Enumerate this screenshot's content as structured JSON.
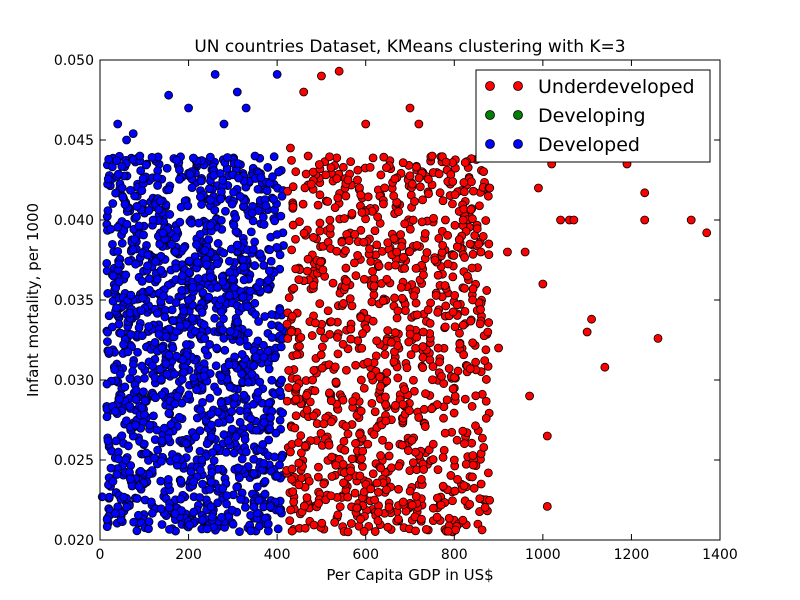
{
  "chart_data": {
    "type": "scatter",
    "title": "UN countries Dataset, KMeans clustering with K=3",
    "xlabel": "Per Capita GDP in US$",
    "ylabel": "Infant mortality, per 1000",
    "xlim": [
      0,
      1400
    ],
    "ylim": [
      0.02,
      0.05
    ],
    "x_ticks": [
      "0",
      "200",
      "400",
      "600",
      "800",
      "1000",
      "1200",
      "1400"
    ],
    "y_ticks": [
      "0.020",
      "0.025",
      "0.030",
      "0.035",
      "0.040",
      "0.045",
      "0.050"
    ],
    "grid": false,
    "legend_position": "top-right",
    "series": [
      {
        "name": "Underdeveloped",
        "color": "#ff0000",
        "points": [
          [
            430,
            0.0445
          ],
          [
            430,
            0.0255
          ],
          [
            440,
            0.027
          ],
          [
            460,
            0.048
          ],
          [
            470,
            0.044
          ],
          [
            480,
            0.03
          ],
          [
            500,
            0.049
          ],
          [
            520,
            0.0395
          ],
          [
            540,
            0.0493
          ],
          [
            560,
            0.0425
          ],
          [
            580,
            0.022
          ],
          [
            600,
            0.046
          ],
          [
            620,
            0.0225
          ],
          [
            640,
            0.041
          ],
          [
            650,
            0.0208
          ],
          [
            670,
            0.038
          ],
          [
            700,
            0.047
          ],
          [
            720,
            0.046
          ],
          [
            730,
            0.033
          ],
          [
            750,
            0.044
          ],
          [
            780,
            0.04
          ],
          [
            800,
            0.025
          ],
          [
            820,
            0.04
          ],
          [
            840,
            0.037
          ],
          [
            860,
            0.038
          ],
          [
            880,
            0.042
          ],
          [
            900,
            0.032
          ],
          [
            920,
            0.038
          ],
          [
            960,
            0.038
          ],
          [
            970,
            0.029
          ],
          [
            990,
            0.042
          ],
          [
            1000,
            0.036
          ],
          [
            1010,
            0.0265
          ],
          [
            1010,
            0.0221
          ],
          [
            1020,
            0.0435
          ],
          [
            1040,
            0.04
          ],
          [
            1060,
            0.04
          ],
          [
            1070,
            0.04
          ],
          [
            1100,
            0.033
          ],
          [
            1110,
            0.0338
          ],
          [
            1140,
            0.0308
          ],
          [
            1190,
            0.0435
          ],
          [
            1230,
            0.0417
          ],
          [
            1230,
            0.04
          ],
          [
            1260,
            0.0326
          ],
          [
            1335,
            0.04
          ],
          [
            1370,
            0.0392
          ]
        ]
      },
      {
        "name": "Developing",
        "color": "#008000",
        "points": []
      },
      {
        "name": "Developed",
        "color": "#0000ff",
        "points": [
          [
            5,
            0.0227
          ],
          [
            20,
            0.0318
          ],
          [
            30,
            0.0365
          ],
          [
            40,
            0.046
          ],
          [
            50,
            0.042
          ],
          [
            60,
            0.045
          ],
          [
            70,
            0.0353
          ],
          [
            75,
            0.0454
          ],
          [
            90,
            0.044
          ],
          [
            100,
            0.026
          ],
          [
            120,
            0.04
          ],
          [
            140,
            0.032
          ],
          [
            155,
            0.0478
          ],
          [
            170,
            0.038
          ],
          [
            200,
            0.047
          ],
          [
            230,
            0.025
          ],
          [
            260,
            0.0491
          ],
          [
            280,
            0.046
          ],
          [
            310,
            0.048
          ],
          [
            330,
            0.047
          ],
          [
            350,
            0.044
          ],
          [
            380,
            0.021
          ],
          [
            400,
            0.0491
          ],
          [
            410,
            0.03
          ]
        ]
      }
    ],
    "dense_regions": [
      {
        "series": "Developed",
        "x": [
          15,
          415
        ],
        "y": [
          0.0205,
          0.044
        ],
        "count": 1500,
        "seed": 7
      },
      {
        "series": "Underdeveloped",
        "x": [
          420,
          880
        ],
        "y": [
          0.0205,
          0.044
        ],
        "count": 1050,
        "seed": 13
      }
    ]
  }
}
